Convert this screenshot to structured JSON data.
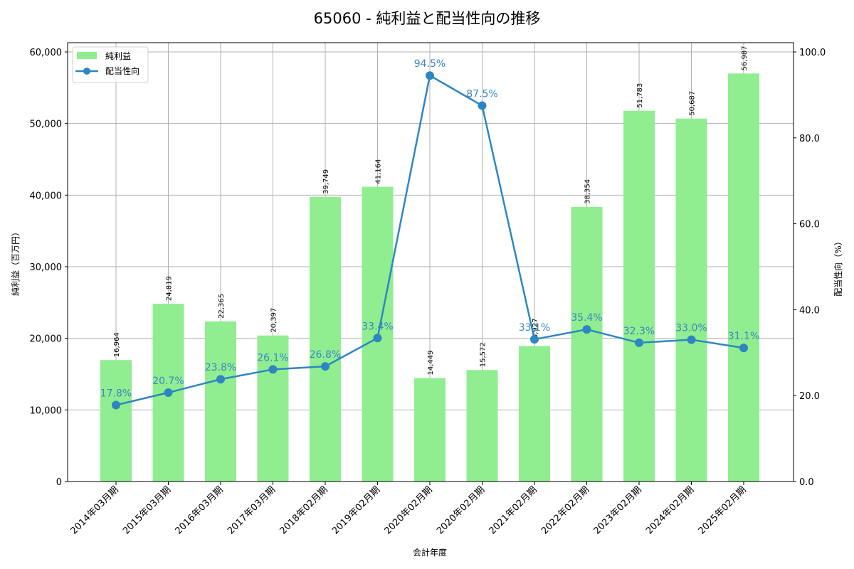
{
  "chart_data": {
    "type": "bar+line",
    "title": "65060 - 純利益と配当性向の推移",
    "xlabel": "会計年度",
    "ylabel": "純利益（百万円）",
    "y2label": "配当性向（%）",
    "categories": [
      "2014年03月期",
      "2015年03月期",
      "2016年03月期",
      "2017年03月期",
      "2018年02月期",
      "2019年02月期",
      "2020年02月期",
      "2020年02月期",
      "2021年02月期",
      "2022年02月期",
      "2023年02月期",
      "2024年02月期",
      "2025年02月期"
    ],
    "series": [
      {
        "name": "純利益",
        "type": "bar",
        "axis": "left",
        "color": "#90ee90",
        "values": [
          16964,
          24819,
          22365,
          20397,
          39749,
          41164,
          14449,
          15572,
          18927,
          38354,
          51783,
          50687,
          56987
        ],
        "labels": [
          "16,964",
          "24,819",
          "22,365",
          "20,397",
          "39,749",
          "41,164",
          "14,449",
          "15,572",
          "18,927",
          "38,354",
          "51,783",
          "50,687",
          "56,987"
        ]
      },
      {
        "name": "配当性向",
        "type": "line",
        "axis": "right",
        "color": "#2e86c1",
        "values": [
          17.8,
          20.7,
          23.8,
          26.1,
          26.8,
          33.4,
          94.5,
          87.5,
          33.1,
          35.4,
          32.3,
          33.0,
          31.1
        ],
        "labels": [
          "17.8%",
          "20.7%",
          "23.8%",
          "26.1%",
          "26.8%",
          "33.4%",
          "94.5%",
          "87.5%",
          "33.1%",
          "35.4%",
          "32.3%",
          "33.0%",
          "31.1%"
        ]
      }
    ],
    "ylim": [
      0,
      60000
    ],
    "y2lim": [
      0,
      100
    ],
    "yticks": [
      "0",
      "10,000",
      "20,000",
      "30,000",
      "40,000",
      "50,000",
      "60,000"
    ],
    "y2ticks": [
      "0.0",
      "20.0",
      "40.0",
      "60.0",
      "80.0",
      "100.0"
    ],
    "grid": true,
    "legend_position": "upper left"
  }
}
